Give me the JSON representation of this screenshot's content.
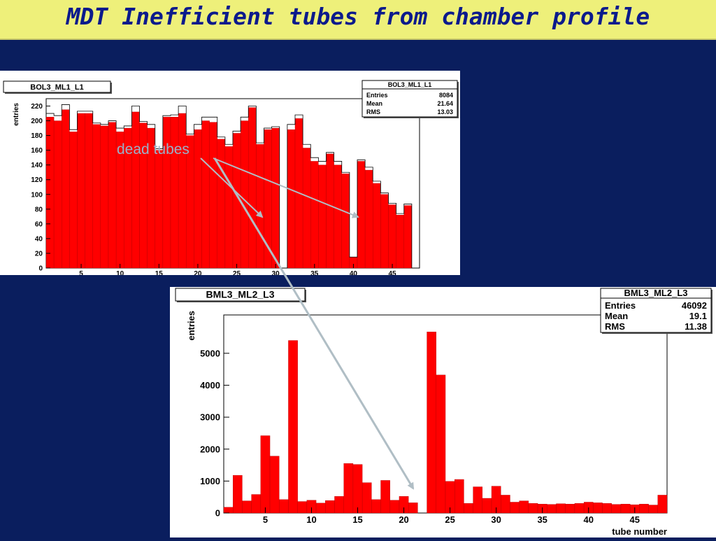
{
  "slide": {
    "title": "MDT Inefficient tubes from chamber profile",
    "annotation": "dead tubes"
  },
  "colors": {
    "background": "#0a1e5e",
    "title_bar": "#eef07a",
    "title_text": "#0b1a8c",
    "bar_fill": "#ff0000",
    "arrow": "#b0bec5"
  },
  "chart_data": [
    {
      "type": "bar",
      "title": "BOL3_ML1_L1",
      "xlabel": "",
      "ylabel": "entries",
      "xlim": [
        0.5,
        48.5
      ],
      "ylim": [
        0,
        230
      ],
      "x_ticks": [
        5,
        10,
        15,
        20,
        25,
        30,
        35,
        40,
        45
      ],
      "y_ticks": [
        0,
        20,
        40,
        60,
        80,
        100,
        120,
        140,
        160,
        180,
        200,
        220
      ],
      "stats": [
        {
          "label": "Entries",
          "value": "8084"
        },
        {
          "label": "Mean",
          "value": "21.64"
        },
        {
          "label": "RMS",
          "value": "13.03"
        }
      ],
      "x": [
        1,
        2,
        3,
        4,
        5,
        6,
        7,
        8,
        9,
        10,
        11,
        12,
        13,
        14,
        15,
        16,
        17,
        18,
        19,
        20,
        21,
        22,
        23,
        24,
        25,
        26,
        27,
        28,
        29,
        30,
        31,
        32,
        33,
        34,
        35,
        36,
        37,
        38,
        39,
        40,
        41,
        42,
        43,
        44,
        45,
        46,
        47,
        48
      ],
      "series": [
        {
          "values": [
            205,
            200,
            215,
            185,
            210,
            210,
            195,
            193,
            198,
            185,
            190,
            212,
            197,
            190,
            160,
            205,
            205,
            210,
            180,
            188,
            200,
            198,
            175,
            165,
            183,
            200,
            218,
            168,
            188,
            190,
            0,
            188,
            203,
            163,
            145,
            140,
            155,
            140,
            128,
            15,
            145,
            133,
            115,
            100,
            86,
            72,
            85,
            0
          ]
        },
        {
          "values": [
            210,
            207,
            222,
            188,
            213,
            213,
            197,
            195,
            200,
            190,
            193,
            220,
            199,
            195,
            162,
            207,
            208,
            220,
            182,
            195,
            205,
            205,
            178,
            168,
            186,
            205,
            220,
            170,
            190,
            192,
            0,
            195,
            208,
            168,
            150,
            145,
            157,
            145,
            130,
            15,
            147,
            137,
            118,
            102,
            88,
            74,
            87,
            0
          ]
        }
      ]
    },
    {
      "type": "bar",
      "title": "BML3_ML2_L3",
      "xlabel": "tube number",
      "ylabel": "entries",
      "xlim": [
        0.5,
        48.5
      ],
      "ylim": [
        0,
        6200
      ],
      "x_ticks": [
        5,
        10,
        15,
        20,
        25,
        30,
        35,
        40,
        45
      ],
      "y_ticks": [
        0,
        1000,
        2000,
        3000,
        4000,
        5000
      ],
      "stats": [
        {
          "label": "Entries",
          "value": "46092"
        },
        {
          "label": "Mean",
          "value": "19.1"
        },
        {
          "label": "RMS",
          "value": "11.38"
        }
      ],
      "x": [
        1,
        2,
        3,
        4,
        5,
        6,
        7,
        8,
        9,
        10,
        11,
        12,
        13,
        14,
        15,
        16,
        17,
        18,
        19,
        20,
        21,
        22,
        23,
        24,
        25,
        26,
        27,
        28,
        29,
        30,
        31,
        32,
        33,
        34,
        35,
        36,
        37,
        38,
        39,
        40,
        41,
        42,
        43,
        44,
        45,
        46,
        47,
        48
      ],
      "series": [
        {
          "values": [
            180,
            1180,
            380,
            580,
            2420,
            1780,
            420,
            5400,
            360,
            400,
            310,
            390,
            520,
            1550,
            1520,
            950,
            420,
            1020,
            400,
            520,
            320,
            0,
            5670,
            4320,
            990,
            1050,
            300,
            820,
            460,
            840,
            560,
            340,
            380,
            300,
            280,
            270,
            290,
            280,
            300,
            340,
            320,
            300,
            270,
            280,
            260,
            280,
            250,
            560
          ]
        }
      ]
    }
  ]
}
